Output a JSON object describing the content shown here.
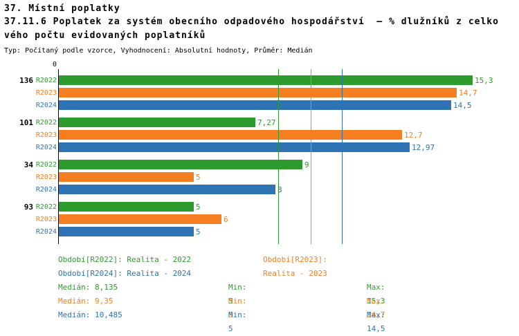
{
  "header": {
    "title_line1": "37. Místní poplatky",
    "title_line2a": "37.11.6 Poplatek za systém obecního odpadového hospodářství  – % dlužníků z celko",
    "title_line2b": "vého počtu evidovaných poplatníků",
    "meta": "Typ: Počítaný podle vzorce, Vyhodnocení: Absolutní hodnoty, Průměr: Medián"
  },
  "chart_data": {
    "type": "bar",
    "orientation": "horizontal",
    "title": "37.11.6 Poplatek za systém obecního odpadového hospodářství – % dlužníků z celkového počtu evidovaných poplatníků",
    "axis_zero": "0",
    "xlim": [
      0,
      15.55
    ],
    "grid": false,
    "legend_position": "bottom",
    "categories": [
      "136",
      "101",
      "34",
      "93"
    ],
    "series": [
      {
        "name": "R2022",
        "color": "#2e9b2e",
        "values": [
          15.3,
          7.27,
          9,
          5
        ],
        "value_labels": [
          "15,3",
          "7,27",
          "9",
          "5"
        ],
        "median": 8.135
      },
      {
        "name": "R2023",
        "color": "#f57e20",
        "values": [
          14.7,
          12.7,
          5,
          6
        ],
        "value_labels": [
          "14,7",
          "12,7",
          "5",
          "6"
        ],
        "median": 9.35
      },
      {
        "name": "R2024",
        "color": "#2e74b5",
        "values": [
          14.5,
          12.97,
          8,
          5
        ],
        "value_labels": [
          "14,5",
          "12,97",
          "8",
          "5"
        ],
        "median": 10.485
      }
    ]
  },
  "legend": [
    {
      "label": "Období[R2022]: Realita - 2022",
      "color": "#2e9b2e"
    },
    {
      "label": "Období[R2023]: Realita - 2023",
      "color": "#f57e20"
    },
    {
      "label": "Období[R2024]: Realita - 2024",
      "color": "#2e74b5"
    }
  ],
  "stats": [
    {
      "median": "Medián: 8,135",
      "min": "Min: 5",
      "max": "Max: 15,3",
      "color": "#2e9b2e"
    },
    {
      "median": "Medián: 9,35",
      "min": "Min: 5",
      "max": "Max: 14,7",
      "color": "#f57e20"
    },
    {
      "median": "Medián: 10,485",
      "min": "Min: 5",
      "max": "Max: 14,5",
      "color": "#2e74b5"
    }
  ]
}
